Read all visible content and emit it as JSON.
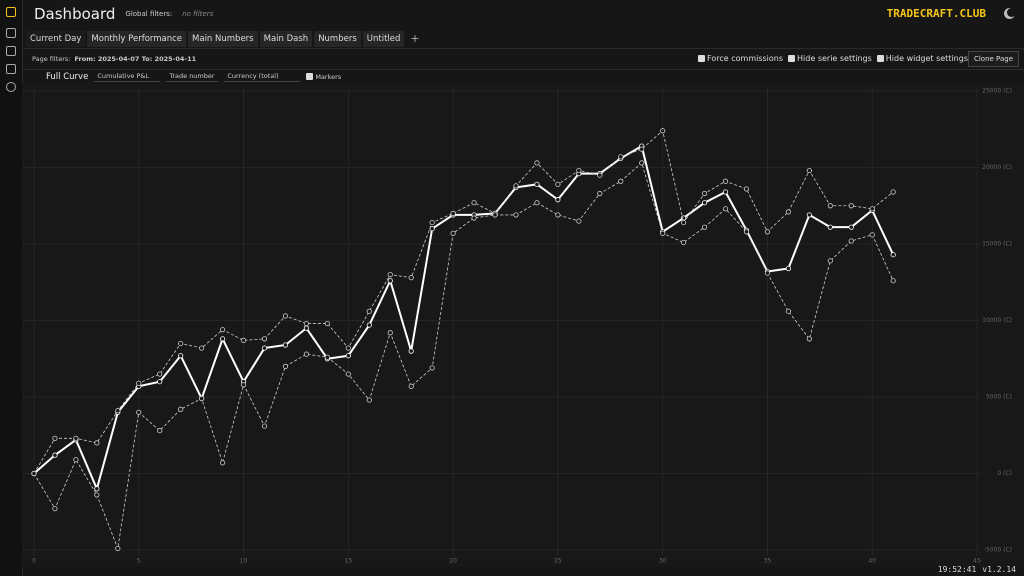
{
  "header": {
    "title": "Dashboard",
    "global_filters_label": "Global filters:",
    "global_filters_value": "no filters",
    "brand": "TRADECRAFT.CLUB"
  },
  "tabs": [
    "Current Day",
    "Monthly Performance",
    "Main Numbers",
    "Main Dash",
    "Numbers",
    "Untitled"
  ],
  "page_filters": {
    "label": "Page filters:",
    "value": "From: 2025-04-07 To: 2025-04-11"
  },
  "options": [
    "Force commissions",
    "Hide serie settings",
    "Hide widget settings"
  ],
  "clone_button": "Clone Page",
  "widget": {
    "title": "Full Curve",
    "selects": [
      "Cumulative P&L",
      "Trade number",
      "Currency (total)"
    ],
    "markers_label": "Markers"
  },
  "footer": {
    "time": "19:52:41",
    "version": "v1.2.14"
  },
  "chart_data": {
    "type": "line",
    "x": [
      0,
      1,
      2,
      3,
      4,
      5,
      6,
      7,
      8,
      9,
      10,
      11,
      12,
      13,
      14,
      15,
      16,
      17,
      18,
      19,
      20,
      21,
      22,
      23,
      24,
      25,
      26,
      27,
      28,
      29,
      30,
      31,
      32,
      33,
      34,
      35,
      36,
      37,
      38,
      39,
      40,
      41
    ],
    "series": [
      {
        "color": "#ffffff",
        "style": "solid",
        "values": [
          0,
          1200,
          2200,
          -1000,
          4000,
          5700,
          6000,
          7700,
          4900,
          8800,
          6000,
          8200,
          8400,
          9500,
          7500,
          7700,
          9700,
          12600,
          8000,
          16000,
          16900,
          16900,
          17000,
          18700,
          18900,
          17900,
          19600,
          19600,
          20600,
          21400,
          15800,
          16700,
          17700,
          18400,
          15900,
          13200,
          13400,
          16900,
          16100,
          16100,
          17200,
          14300
        ]
      },
      {
        "color": "#cfcfcf",
        "style": "dashed",
        "values": [
          0,
          2300,
          2300,
          2000,
          4100,
          5900,
          6500,
          8500,
          8200,
          9400,
          8700,
          8800,
          10300,
          9800,
          9800,
          8200,
          10600,
          13000,
          12800,
          16400,
          17000,
          17700,
          17000,
          18800,
          20300,
          18900,
          19800,
          19500,
          20700,
          21200,
          22400,
          16400,
          18300,
          19100,
          18600,
          15800,
          17100,
          19800,
          17500,
          17500,
          17300,
          18400
        ]
      },
      {
        "color": "#cfcfcf",
        "style": "dashed",
        "values": [
          0,
          -2300,
          900,
          -1400,
          -4900,
          4000,
          2800,
          4200,
          4900,
          700,
          5800,
          3100,
          7000,
          7800,
          7600,
          6500,
          4800,
          9200,
          5700,
          6900,
          15700,
          16700,
          16900,
          16900,
          17700,
          16900,
          16500,
          18300,
          19100,
          20300,
          15700,
          15100,
          16100,
          17300,
          15800,
          13100,
          10600,
          8800,
          13900,
          15200,
          15600,
          12600
        ]
      }
    ],
    "xlim": [
      0,
      45
    ],
    "xticks": [
      0,
      5,
      10,
      15,
      20,
      25,
      30,
      35,
      40,
      45
    ],
    "ylim": [
      -5000,
      25000
    ],
    "yticks": [
      {
        "value": -5000,
        "label": "-5000 (C)"
      },
      {
        "value": 0,
        "label": "0 (C)"
      },
      {
        "value": 5000,
        "label": "5000 (C)"
      },
      {
        "value": 10000,
        "label": "10000 (C)"
      },
      {
        "value": 15000,
        "label": "15000 (C)"
      },
      {
        "value": 20000,
        "label": "20000 (C)"
      },
      {
        "value": 25000,
        "label": "25000 (C)"
      }
    ],
    "grid": true,
    "markers": true
  }
}
